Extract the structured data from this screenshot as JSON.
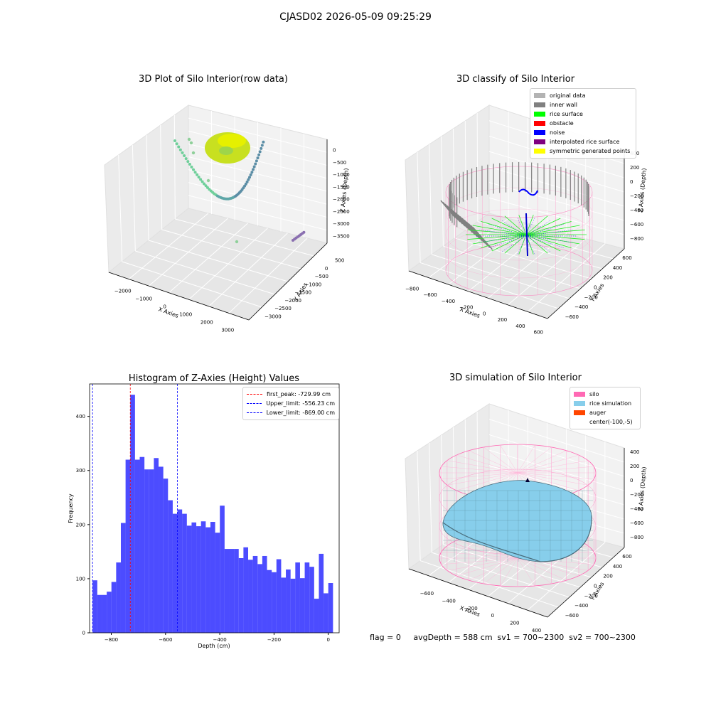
{
  "suptitle": "CJASD02 2026-05-09 09:25:29",
  "panels": {
    "raw": {
      "title": "3D Plot of Silo Interior(row data)",
      "xlabel": "X Axies",
      "ylabel": "Y Axies",
      "zlabel": "Z Axies (Depth)",
      "xticks": [
        "−2000",
        "−1000",
        "0",
        "1000",
        "2000",
        "3000"
      ],
      "yticks": [
        "500",
        "0",
        "−500",
        "−1000",
        "−1500",
        "−2000",
        "−2500",
        "−3000"
      ],
      "zticks": [
        "0",
        "−500",
        "−1000",
        "−1500",
        "−2000",
        "−2500",
        "−3000",
        "−3500"
      ]
    },
    "classify": {
      "title": "3D classify of Silo Interior",
      "xlabel": "X Axies",
      "ylabel": "Y Axies",
      "zlabel": "Z Axies (Depth)",
      "xticks": [
        "−800",
        "−600",
        "−400",
        "−200",
        "0",
        "200",
        "400",
        "600"
      ],
      "yticks": [
        "600",
        "400",
        "200",
        "0",
        "−200",
        "−400",
        "−600"
      ],
      "zticks": [
        "400",
        "200",
        "0",
        "−200",
        "−400",
        "−600",
        "−800"
      ],
      "legend": [
        {
          "label": "original data",
          "color": "#b3b3b3"
        },
        {
          "label": "inner wall",
          "color": "#808080"
        },
        {
          "label": "rice surface",
          "color": "#00ff00"
        },
        {
          "label": "obstacle",
          "color": "#ff0000"
        },
        {
          "label": "noise",
          "color": "#0000ff"
        },
        {
          "label": "interpolated rice surface",
          "color": "#800080"
        },
        {
          "label": "symmetric generated points",
          "color": "#ffff00"
        }
      ]
    },
    "simulation": {
      "title": "3D simulation of Silo Interior",
      "xlabel": "X Axies",
      "ylabel": "Y Axies",
      "zlabel": "Z Axies (Depth)",
      "xticks": [
        "−600",
        "−400",
        "−200",
        "0",
        "200",
        "400"
      ],
      "yticks": [
        "600",
        "400",
        "200",
        "0",
        "−200",
        "−400",
        "−600"
      ],
      "zticks": [
        "400",
        "200",
        "0",
        "−200",
        "−400",
        "−600",
        "−800"
      ],
      "legend": [
        {
          "label": "silo",
          "color": "#ff69b4"
        },
        {
          "label": "rice simulation",
          "color": "#87ceeb"
        },
        {
          "label": "auger",
          "color": "#ff4500"
        },
        {
          "label": "center(-100,-5)",
          "color": ""
        }
      ]
    }
  },
  "footer": "flag = 0     avgDepth = 588 cm  sv1 = 700~2300  sv2 = 700~2300",
  "chart_data": [
    {
      "type": "bar",
      "title": "Histogram of Z-Axies (Height) Values",
      "xlabel": "Depth (cm)",
      "ylabel": "Frequency",
      "xlim": [
        -880,
        40
      ],
      "ylim": [
        0,
        460
      ],
      "xticks": [
        -800,
        -600,
        -400,
        -200,
        0
      ],
      "yticks": [
        0,
        100,
        200,
        300,
        400
      ],
      "bin_start": -869,
      "bin_width": 17.38,
      "bar_color": "#0000ff",
      "values": [
        97,
        70,
        70,
        76,
        94,
        130,
        203,
        320,
        440,
        320,
        325,
        302,
        302,
        323,
        307,
        285,
        245,
        220,
        228,
        220,
        198,
        204,
        197,
        206,
        195,
        205,
        185,
        235,
        155,
        155,
        155,
        138,
        158,
        135,
        142,
        127,
        142,
        116,
        112,
        136,
        102,
        117,
        100,
        130,
        101,
        130,
        122,
        63,
        146,
        73,
        92
      ],
      "vlines": [
        {
          "label": "first_peak: -729.99 cm",
          "x": -729.99,
          "color": "#ff0000"
        },
        {
          "label": "Upper_limit: -556.23 cm",
          "x": -556.23,
          "color": "#0000ff"
        },
        {
          "label": "Lower_limit: -869.00 cm",
          "x": -869.0,
          "color": "#0000ff"
        }
      ]
    }
  ]
}
